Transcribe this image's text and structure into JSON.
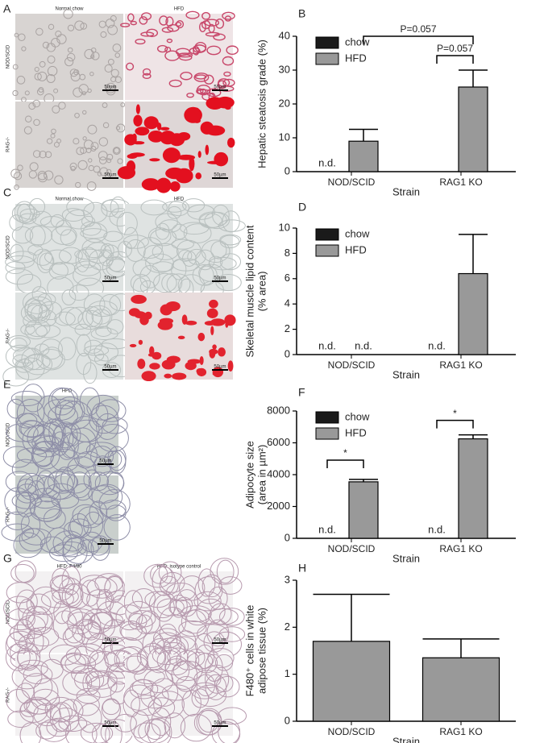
{
  "panels": [
    "A",
    "B",
    "C",
    "D",
    "E",
    "F",
    "G",
    "H"
  ],
  "micrographs": [
    {
      "columns": [
        "Normal chow",
        "HFD"
      ],
      "rows": [
        "NOD/SCID",
        "RAG-/-"
      ],
      "scale": "50µm",
      "styles": [
        [
          "gray",
          "pink"
        ],
        [
          "gray",
          "red"
        ]
      ]
    },
    {
      "columns": [
        "Normal chow",
        "HFD"
      ],
      "rows": [
        "NOD/SCID",
        "RAG-/-"
      ],
      "scale": "50µm",
      "styles": [
        [
          "muscle",
          "muscle"
        ],
        [
          "muscle",
          "redmuscle"
        ]
      ]
    },
    {
      "columns": [
        "HFD"
      ],
      "rows": [
        "NOD/SCID",
        "RAG-/-"
      ],
      "scale": "50µm",
      "styles": [
        [
          "adipose"
        ],
        [
          "adipose"
        ]
      ]
    },
    {
      "columns": [
        "HFD: F4/80",
        "HFD: isotype control"
      ],
      "rows": [
        "NOD/SCID",
        "RAG-/-"
      ],
      "scale": "50µm",
      "styles": [
        [
          "fat",
          "fat"
        ],
        [
          "fat",
          "fat"
        ]
      ]
    }
  ],
  "chart_data": [
    {
      "type": "bar",
      "ylabel": [
        "Hepatic steatosis grade (%)"
      ],
      "xlabel": "Strain",
      "categories": [
        "NOD/SCID",
        "RAG1 KO"
      ],
      "series": [
        {
          "name": "chow",
          "color": "#1a1a1a",
          "values": [
            null,
            null
          ],
          "errors": [
            null,
            null
          ]
        },
        {
          "name": "HFD",
          "color": "#999999",
          "values": [
            9,
            25
          ],
          "errors": [
            3.5,
            5
          ]
        }
      ],
      "ylim": [
        0,
        40
      ],
      "yticks": [
        0,
        10,
        20,
        30,
        40
      ],
      "legend": "upper left",
      "annotations": [
        {
          "text": "n.d.",
          "category": 0,
          "series": 0
        }
      ],
      "brackets": [
        {
          "text": "P=0.057",
          "from": [
            1,
            0
          ],
          "to": [
            1,
            1
          ]
        },
        {
          "text": "P=0.057",
          "from": [
            0,
            1
          ],
          "to": [
            1,
            1
          ]
        }
      ]
    },
    {
      "type": "bar",
      "ylabel": [
        "Skeletal muscle lipid content",
        "(% area)"
      ],
      "xlabel": "Strain",
      "categories": [
        "NOD/SCID",
        "RAG1 KO"
      ],
      "series": [
        {
          "name": "chow",
          "color": "#1a1a1a",
          "values": [
            null,
            null
          ],
          "errors": [
            null,
            null
          ]
        },
        {
          "name": "HFD",
          "color": "#999999",
          "values": [
            null,
            6.4
          ],
          "errors": [
            null,
            3.1
          ]
        }
      ],
      "ylim": [
        0,
        10
      ],
      "yticks": [
        0,
        2,
        4,
        6,
        8,
        10
      ],
      "legend": "upper left",
      "annotations": [
        {
          "text": "n.d.",
          "category": 0,
          "series": 0
        },
        {
          "text": "n.d.",
          "category": 0,
          "series": 1
        },
        {
          "text": "n.d.",
          "category": 1,
          "series": 0
        }
      ],
      "brackets": []
    },
    {
      "type": "bar",
      "ylabel": [
        "Adipocyte size",
        "(area in µm²)"
      ],
      "xlabel": "Strain",
      "categories": [
        "NOD/SCID",
        "RAG1 KO"
      ],
      "series": [
        {
          "name": "chow",
          "color": "#1a1a1a",
          "values": [
            null,
            null
          ],
          "errors": [
            null,
            null
          ]
        },
        {
          "name": "HFD",
          "color": "#999999",
          "values": [
            3550,
            6250
          ],
          "errors": [
            150,
            250
          ]
        }
      ],
      "ylim": [
        0,
        8000
      ],
      "yticks": [
        0,
        2000,
        4000,
        6000,
        8000
      ],
      "legend": "upper left",
      "annotations": [
        {
          "text": "n.d.",
          "category": 0,
          "series": 0
        },
        {
          "text": "n.d.",
          "category": 1,
          "series": 0
        }
      ],
      "brackets": [
        {
          "text": "*",
          "from": [
            0,
            0
          ],
          "to": [
            0,
            1
          ]
        },
        {
          "text": "*",
          "from": [
            1,
            0
          ],
          "to": [
            1,
            1
          ]
        }
      ]
    },
    {
      "type": "bar",
      "ylabel": [
        "F480⁺ cells in white",
        "adipose tissue (%)"
      ],
      "xlabel": "Strain",
      "categories": [
        "NOD/SCID",
        "RAG1 KO"
      ],
      "series": [
        {
          "color": "#999999",
          "values": [
            1.7,
            1.35
          ],
          "errors": [
            1.0,
            0.4
          ]
        }
      ],
      "ylim": [
        0,
        3
      ],
      "yticks": [
        0,
        1,
        2,
        3
      ],
      "legend": "none",
      "annotations": [],
      "brackets": []
    }
  ]
}
